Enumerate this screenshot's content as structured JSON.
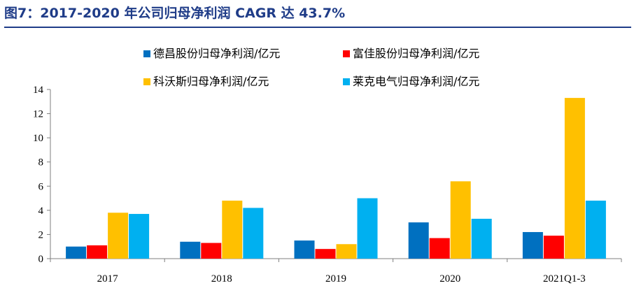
{
  "header": {
    "title": "图7：2017-2020 年公司归母净利润 CAGR 达 43.7%"
  },
  "chart_data": {
    "type": "bar",
    "categories": [
      "2017",
      "2018",
      "2019",
      "2020",
      "2021Q1-3"
    ],
    "series": [
      {
        "name": "德昌股份归母净利润/亿元",
        "color": "#0070c0",
        "values": [
          1.0,
          1.4,
          1.5,
          3.0,
          2.2
        ]
      },
      {
        "name": "富佳股份归母净利润/亿元",
        "color": "#ff0000",
        "values": [
          1.1,
          1.3,
          0.8,
          1.7,
          1.9
        ]
      },
      {
        "name": "科沃斯归母净利润/亿元",
        "color": "#ffc000",
        "values": [
          3.8,
          4.8,
          1.2,
          6.4,
          13.3
        ]
      },
      {
        "name": "莱克电气归母净利润/亿元",
        "color": "#00b0f0",
        "values": [
          3.7,
          4.2,
          5.0,
          3.3,
          4.8
        ]
      }
    ],
    "ylim": [
      0,
      14
    ],
    "yticks": [
      0,
      2,
      4,
      6,
      8,
      10,
      12,
      14
    ],
    "grid": false,
    "legend_position": "top"
  }
}
